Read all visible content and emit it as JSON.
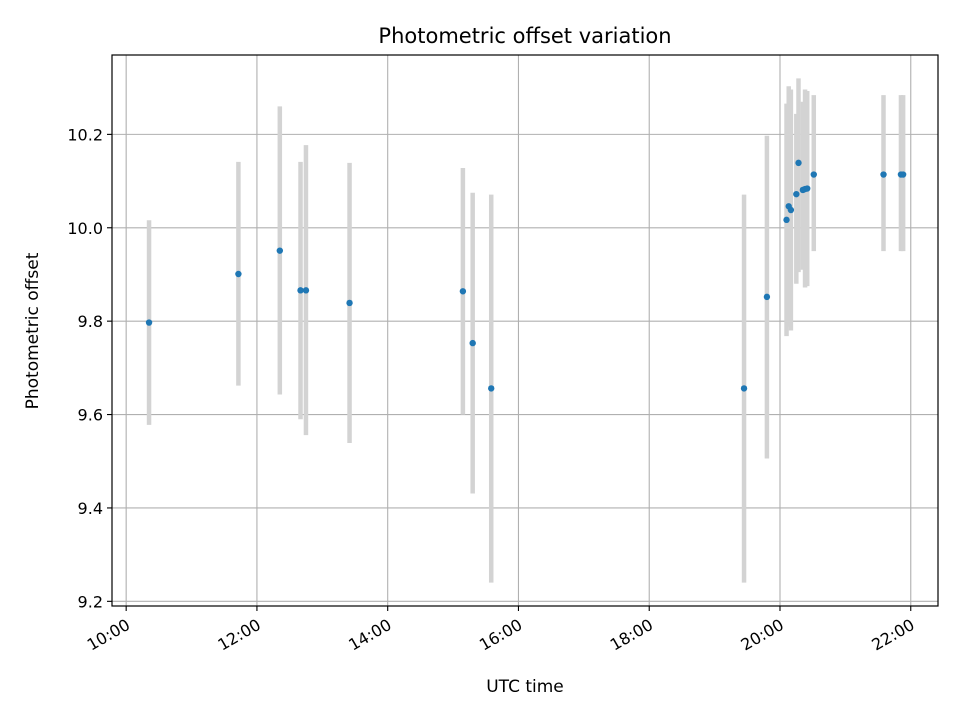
{
  "chart_data": {
    "type": "scatter",
    "title": "Photometric offset variation",
    "xlabel": "UTC time",
    "ylabel": "Photometric offset",
    "xlim": [
      "09:47",
      "22:25"
    ],
    "ylim": [
      9.19,
      10.37
    ],
    "x_ticks": [
      "10:00",
      "12:00",
      "14:00",
      "16:00",
      "18:00",
      "20:00",
      "22:00"
    ],
    "y_ticks": [
      "9.2",
      "9.4",
      "9.6",
      "9.8",
      "10.0",
      "10.2"
    ],
    "grid": true,
    "marker_color": "#1f77b4",
    "errorbar_color": "#d3d3d3",
    "points": [
      {
        "x": "10:21",
        "y": 9.797,
        "lo": 9.578,
        "hi": 10.016
      },
      {
        "x": "11:43",
        "y": 9.901,
        "lo": 9.662,
        "hi": 10.141
      },
      {
        "x": "12:21",
        "y": 9.951,
        "lo": 9.643,
        "hi": 10.26
      },
      {
        "x": "12:40",
        "y": 9.866,
        "lo": 9.59,
        "hi": 10.141
      },
      {
        "x": "12:45",
        "y": 9.866,
        "lo": 9.556,
        "hi": 10.177
      },
      {
        "x": "13:25",
        "y": 9.839,
        "lo": 9.539,
        "hi": 10.139
      },
      {
        "x": "15:09",
        "y": 9.864,
        "lo": 9.6,
        "hi": 10.128
      },
      {
        "x": "15:18",
        "y": 9.753,
        "lo": 9.431,
        "hi": 10.075
      },
      {
        "x": "15:35",
        "y": 9.656,
        "lo": 9.24,
        "hi": 10.071
      },
      {
        "x": "19:27",
        "y": 9.656,
        "lo": 9.24,
        "hi": 10.071
      },
      {
        "x": "19:48",
        "y": 9.852,
        "lo": 9.506,
        "hi": 10.197
      },
      {
        "x": "20:06",
        "y": 10.017,
        "lo": 9.768,
        "hi": 10.266
      },
      {
        "x": "20:08",
        "y": 10.046,
        "lo": 9.788,
        "hi": 10.303
      },
      {
        "x": "20:10",
        "y": 10.038,
        "lo": 9.78,
        "hi": 10.296
      },
      {
        "x": "20:15",
        "y": 10.072,
        "lo": 9.88,
        "hi": 10.244
      },
      {
        "x": "20:17",
        "y": 10.139,
        "lo": 9.905,
        "hi": 10.32
      },
      {
        "x": "20:21",
        "y": 10.081,
        "lo": 9.91,
        "hi": 10.27
      },
      {
        "x": "20:23",
        "y": 10.083,
        "lo": 9.872,
        "hi": 10.296
      },
      {
        "x": "20:25",
        "y": 10.084,
        "lo": 9.875,
        "hi": 10.293
      },
      {
        "x": "20:31",
        "y": 10.114,
        "lo": 9.95,
        "hi": 10.284
      },
      {
        "x": "21:35",
        "y": 10.114,
        "lo": 9.95,
        "hi": 10.284
      },
      {
        "x": "21:51",
        "y": 10.114,
        "lo": 9.95,
        "hi": 10.284
      },
      {
        "x": "21:53",
        "y": 10.114,
        "lo": 9.95,
        "hi": 10.284
      }
    ]
  }
}
